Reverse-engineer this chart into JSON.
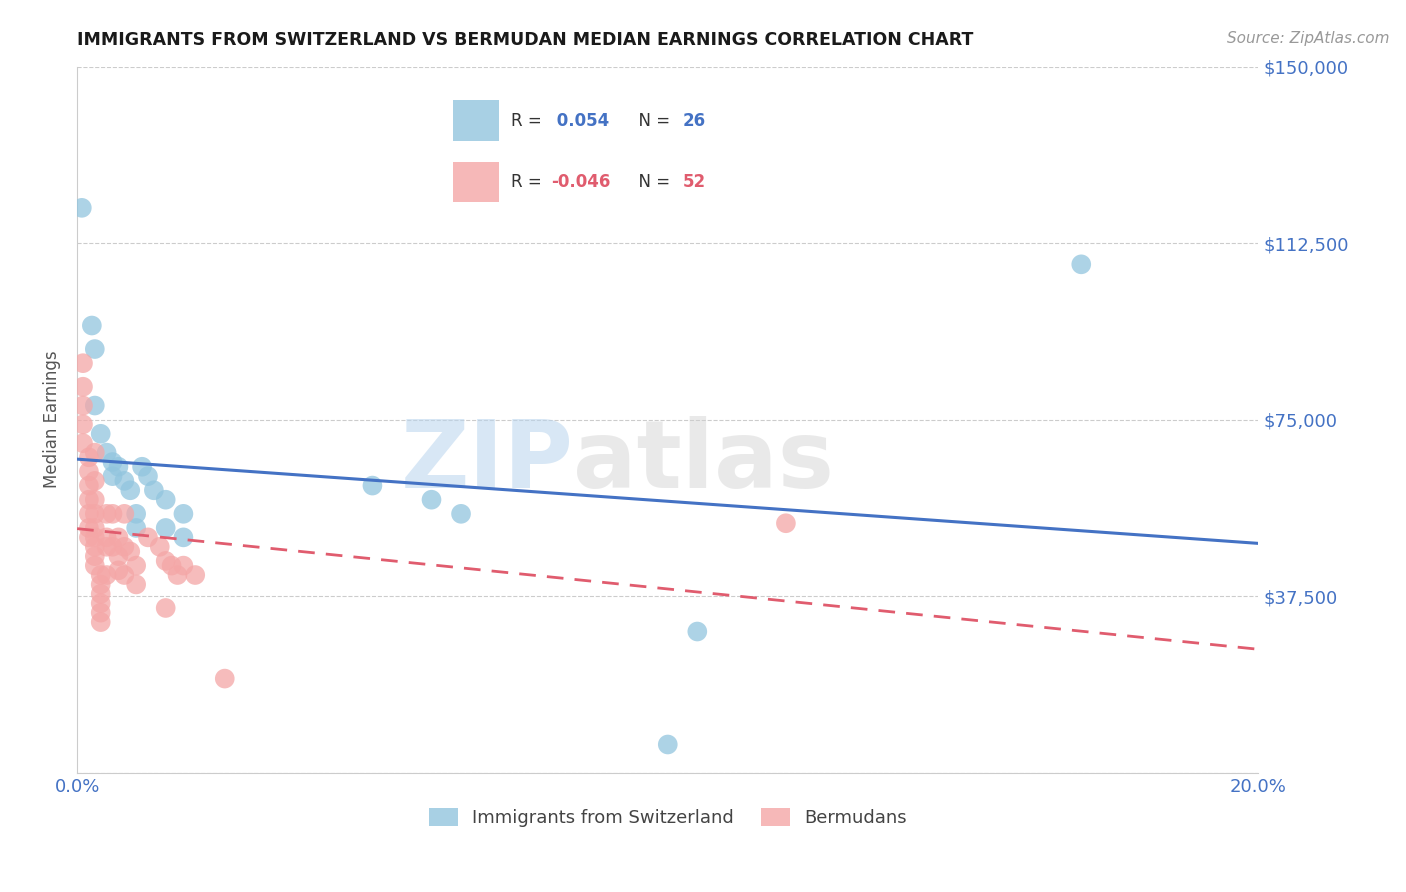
{
  "title": "IMMIGRANTS FROM SWITZERLAND VS BERMUDAN MEDIAN EARNINGS CORRELATION CHART",
  "source": "Source: ZipAtlas.com",
  "ylabel": "Median Earnings",
  "yticks": [
    0,
    37500,
    75000,
    112500,
    150000
  ],
  "ytick_labels": [
    "",
    "$37,500",
    "$75,000",
    "$112,500",
    "$150,000"
  ],
  "xlim": [
    0.0,
    0.2
  ],
  "ylim": [
    0,
    150000
  ],
  "color_blue": "#92c5de",
  "color_pink": "#f4a6a6",
  "color_blue_dark": "#4472c4",
  "color_pink_dark": "#e05c6e",
  "color_axis_label": "#4472c4",
  "watermark_text": "ZIPatlas",
  "swiss_r": "0.054",
  "swiss_n": "26",
  "berm_r": "-0.046",
  "berm_n": "52",
  "swiss_points": [
    [
      0.0008,
      120000
    ],
    [
      0.0025,
      95000
    ],
    [
      0.003,
      90000
    ],
    [
      0.003,
      78000
    ],
    [
      0.004,
      72000
    ],
    [
      0.005,
      68000
    ],
    [
      0.006,
      66000
    ],
    [
      0.006,
      63000
    ],
    [
      0.007,
      65000
    ],
    [
      0.008,
      62000
    ],
    [
      0.009,
      60000
    ],
    [
      0.01,
      55000
    ],
    [
      0.01,
      52000
    ],
    [
      0.011,
      65000
    ],
    [
      0.012,
      63000
    ],
    [
      0.013,
      60000
    ],
    [
      0.015,
      58000
    ],
    [
      0.015,
      52000
    ],
    [
      0.018,
      55000
    ],
    [
      0.018,
      50000
    ],
    [
      0.05,
      61000
    ],
    [
      0.06,
      58000
    ],
    [
      0.065,
      55000
    ],
    [
      0.17,
      108000
    ],
    [
      0.105,
      30000
    ],
    [
      0.1,
      6000
    ]
  ],
  "bermudan_points": [
    [
      0.001,
      87000
    ],
    [
      0.001,
      82000
    ],
    [
      0.001,
      78000
    ],
    [
      0.001,
      74000
    ],
    [
      0.001,
      70000
    ],
    [
      0.002,
      67000
    ],
    [
      0.002,
      64000
    ],
    [
      0.002,
      61000
    ],
    [
      0.002,
      58000
    ],
    [
      0.002,
      55000
    ],
    [
      0.002,
      52000
    ],
    [
      0.002,
      50000
    ],
    [
      0.003,
      68000
    ],
    [
      0.003,
      62000
    ],
    [
      0.003,
      58000
    ],
    [
      0.003,
      55000
    ],
    [
      0.003,
      52000
    ],
    [
      0.003,
      50000
    ],
    [
      0.003,
      48000
    ],
    [
      0.003,
      46000
    ],
    [
      0.003,
      44000
    ],
    [
      0.004,
      42000
    ],
    [
      0.004,
      40000
    ],
    [
      0.004,
      38000
    ],
    [
      0.004,
      36000
    ],
    [
      0.004,
      34000
    ],
    [
      0.004,
      32000
    ],
    [
      0.005,
      55000
    ],
    [
      0.005,
      50000
    ],
    [
      0.005,
      48000
    ],
    [
      0.005,
      42000
    ],
    [
      0.006,
      55000
    ],
    [
      0.006,
      48000
    ],
    [
      0.007,
      50000
    ],
    [
      0.007,
      46000
    ],
    [
      0.007,
      43000
    ],
    [
      0.008,
      55000
    ],
    [
      0.008,
      48000
    ],
    [
      0.008,
      42000
    ],
    [
      0.009,
      47000
    ],
    [
      0.01,
      44000
    ],
    [
      0.01,
      40000
    ],
    [
      0.012,
      50000
    ],
    [
      0.014,
      48000
    ],
    [
      0.015,
      45000
    ],
    [
      0.016,
      44000
    ],
    [
      0.017,
      42000
    ],
    [
      0.018,
      44000
    ],
    [
      0.02,
      42000
    ],
    [
      0.025,
      20000
    ],
    [
      0.12,
      53000
    ],
    [
      0.015,
      35000
    ]
  ]
}
